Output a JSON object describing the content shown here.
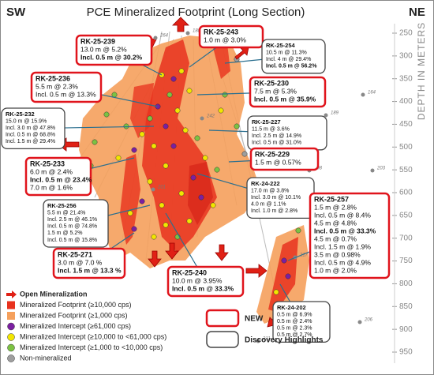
{
  "title": "PCE Mineralized Footprint (Long Section)",
  "corner_left": "SW",
  "corner_right": "NE",
  "depth_axis": {
    "label": "DEPTH IN METERS",
    "ticks": [
      250,
      300,
      350,
      400,
      450,
      500,
      550,
      600,
      650,
      700,
      750,
      800,
      850,
      900,
      950
    ]
  },
  "hole_labels": [
    "264",
    "188",
    "164",
    "189",
    "198",
    "203",
    "219",
    "217",
    "211",
    "206",
    "242",
    "201"
  ],
  "callouts": [
    {
      "id": "RK-25-239",
      "style": "new",
      "lines": [
        "13.0 m @ 5.2%",
        "Incl. 0.5 m @ 30.2%"
      ]
    },
    {
      "id": "RK-25-243",
      "style": "new",
      "lines": [
        "1.0 m @ 3.0%"
      ]
    },
    {
      "id": "RK-25-254",
      "style": "highlight",
      "lines": [
        "10.5 m @ 11.3%",
        "Incl. 4 m @ 29.4%",
        "Incl. 0.5 m @ 56.2%"
      ]
    },
    {
      "id": "RK-25-236",
      "style": "new",
      "lines": [
        "5.5 m @ 2.3%",
        "Incl. 0.5 m @ 13.3%"
      ]
    },
    {
      "id": "RK-25-230",
      "style": "new",
      "lines": [
        "7.5 m @ 5.3%",
        "Incl. 0.5 m @ 35.9%"
      ]
    },
    {
      "id": "RK-25-232",
      "style": "highlight",
      "lines": [
        "15.0 m @ 15.9%",
        "Incl. 3.0 m @ 47.8%",
        "Incl. 0.5 m @ 68.8%",
        "Incl. 1.5 m @ 29.4%"
      ]
    },
    {
      "id": "RK-25-227",
      "style": "highlight",
      "lines": [
        "11.5 m @ 3.6%",
        "Incl. 2.5 m @ 14.9%",
        "Incl. 0.5 m @ 31.0%"
      ]
    },
    {
      "id": "RK-25-229",
      "style": "new",
      "lines": [
        "1.5 m @ 0.57%"
      ]
    },
    {
      "id": "RK-25-233",
      "style": "new",
      "lines": [
        "6.0 m @ 2.4%",
        "Incl. 0.5 m @ 23.4%",
        "7.0 m @ 1.6%"
      ]
    },
    {
      "id": "RK-24-222",
      "style": "highlight",
      "lines": [
        "17.0 m @ 3.8%",
        "Incl. 3.0 m @ 10.1%",
        "4.0 m @ 1.1%",
        "Incl. 1.0 m @ 2.8%"
      ]
    },
    {
      "id": "RK-25-256",
      "style": "highlight",
      "lines": [
        "5.5 m @ 21.4%",
        "Incl. 2.5 m @ 46.1%",
        "Incl. 0.5 m @ 74.8%",
        "1.5 m @ 5.2%",
        "Incl. 0.5 m @ 15.8%"
      ]
    },
    {
      "id": "RK-25-257",
      "style": "new",
      "lines": [
        "1.5 m @ 2.8%",
        "Incl. 0.5 m @ 8.4%",
        "4.5 m @ 4.8%",
        "Incl. 0.5 m @ 33.3%",
        "4.5 m @ 0.7%",
        "Incl. 1.5 m @ 1.9%",
        "3.5 m @ 0.98%",
        "Incl. 0.5 m @ 4.9%",
        "1.0 m @ 2.0%"
      ]
    },
    {
      "id": "RK-25-271",
      "style": "new",
      "lines": [
        "3.0 m @ 7.0 %",
        "Incl. 1.5 m @ 13.3 %"
      ]
    },
    {
      "id": "RK-25-240",
      "style": "new",
      "lines": [
        "10.0 m @ 3.95%",
        "Incl. 0.5 m @ 33.3%"
      ]
    },
    {
      "id": "RK-24-202",
      "style": "highlight",
      "lines": [
        "0.5 m @ 6.9%",
        "0.5 m @ 2.4%",
        "0.5 m @ 2.3%",
        "0.5 m @ 2.7%"
      ]
    }
  ],
  "legend": [
    "Open Mineralization",
    "Mineralized Footprint (≥10,000 cps)",
    "Mineralized Footprint (≥1,000 cps)",
    "Mineralized Intercept (≥61,000 cps)",
    "Mineralized Intercept (≥10,000 to <61,000 cps)",
    "Mineralized Intercept (≥1,000 to <10,000 cps)",
    "Non-mineralized"
  ],
  "box_legend": {
    "new": "NEW",
    "highlight": "Discovery Highlights"
  }
}
